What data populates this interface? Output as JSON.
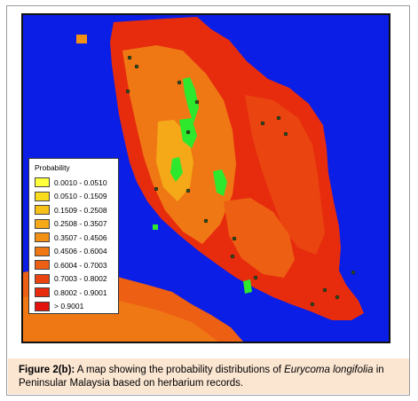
{
  "legend": {
    "title": "Probability",
    "items": [
      {
        "label": "0.0010 - 0.0510",
        "color": "#ffff3c"
      },
      {
        "label": "0.0510 - 0.1509",
        "color": "#fadc1e"
      },
      {
        "label": "0.1509 - 0.2508",
        "color": "#f8c11a"
      },
      {
        "label": "0.2508 - 0.3507",
        "color": "#f5a918"
      },
      {
        "label": "0.3507 - 0.4506",
        "color": "#f39016"
      },
      {
        "label": "0.4506 - 0.6004",
        "color": "#f07814"
      },
      {
        "label": "0.6004 - 0.7003",
        "color": "#ed5f12"
      },
      {
        "label": "0.7003 - 0.8002",
        "color": "#ea4510"
      },
      {
        "label": "0.8002 - 0.9001",
        "color": "#e72c0e"
      },
      {
        "label": "> 0.9001",
        "color": "#e4120c"
      }
    ]
  },
  "map": {
    "sea_color": "#0a1ee6",
    "land_colors": [
      "#e4120c",
      "#ea4510",
      "#f07814",
      "#f5a918",
      "#fadc1e"
    ],
    "low_probability_color": "#2ee82e",
    "herbarium_point_color": "#2f4f1f"
  },
  "caption": {
    "label": "Figure 2(b):",
    "text_before": " A map showing the probability distributions of ",
    "species": "Eurycoma longifolia",
    "text_after": " in Peninsular Malaysia based on herbarium records."
  }
}
